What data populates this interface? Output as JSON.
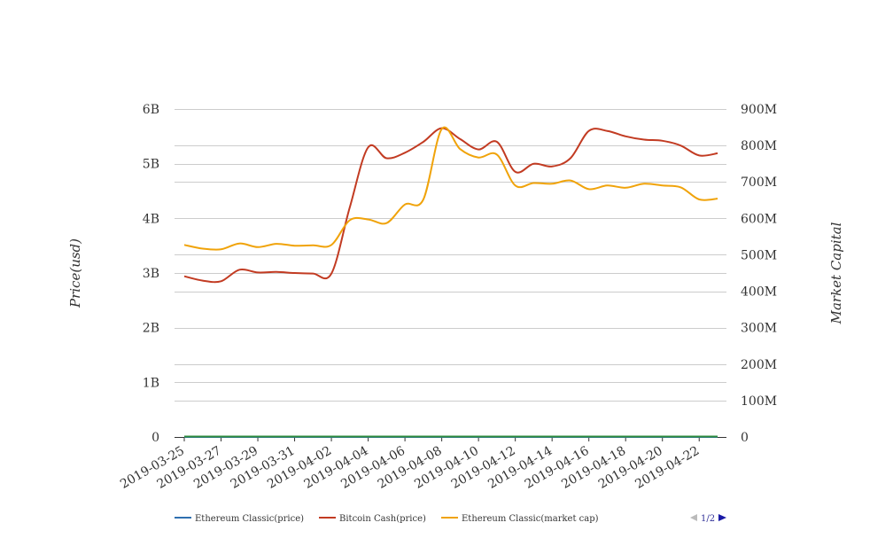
{
  "chart_data": {
    "type": "line",
    "title": "",
    "ylabel_left": "Price(usd)",
    "ylabel_right": "Market Capital",
    "x_ticks": [
      "2019-03-25",
      "2019-03-27",
      "2019-03-29",
      "2019-03-31",
      "2019-04-02",
      "2019-04-04",
      "2019-04-06",
      "2019-04-08",
      "2019-04-10",
      "2019-04-12",
      "2019-04-14",
      "2019-04-16",
      "2019-04-18",
      "2019-04-20",
      "2019-04-22"
    ],
    "y_left": {
      "min": 0,
      "max": 6000000000,
      "ticks": [
        {
          "value": 0,
          "label": "0"
        },
        {
          "value": 1000000000,
          "label": "1B"
        },
        {
          "value": 2000000000,
          "label": "2B"
        },
        {
          "value": 3000000000,
          "label": "3B"
        },
        {
          "value": 4000000000,
          "label": "4B"
        },
        {
          "value": 5000000000,
          "label": "5B"
        },
        {
          "value": 6000000000,
          "label": "6B"
        }
      ]
    },
    "y_right": {
      "min": 0,
      "max": 900000000,
      "ticks": [
        {
          "value": 0,
          "label": "0"
        },
        {
          "value": 100000000,
          "label": "100M"
        },
        {
          "value": 200000000,
          "label": "200M"
        },
        {
          "value": 300000000,
          "label": "300M"
        },
        {
          "value": 400000000,
          "label": "400M"
        },
        {
          "value": 500000000,
          "label": "500M"
        },
        {
          "value": 600000000,
          "label": "600M"
        },
        {
          "value": 700000000,
          "label": "700M"
        },
        {
          "value": 800000000,
          "label": "800M"
        },
        {
          "value": 900000000,
          "label": "900M"
        }
      ]
    },
    "grid": true,
    "legend_position": "bottom",
    "series": [
      {
        "name": "Ethereum Classic(price)",
        "axis": "left",
        "color": "#2f6fb0",
        "x": [
          "2019-03-25",
          "2019-04-23"
        ],
        "values": [
          4.8,
          4.3
        ]
      },
      {
        "name": "Bitcoin Cash(price)",
        "axis": "left",
        "color": "#c23b22",
        "x": [
          "2019-03-25",
          "2019-03-26",
          "2019-03-27",
          "2019-03-28",
          "2019-03-29",
          "2019-03-30",
          "2019-03-31",
          "2019-04-01",
          "2019-04-02",
          "2019-04-03",
          "2019-04-04",
          "2019-04-05",
          "2019-04-06",
          "2019-04-07",
          "2019-04-08",
          "2019-04-09",
          "2019-04-10",
          "2019-04-11",
          "2019-04-12",
          "2019-04-13",
          "2019-04-14",
          "2019-04-15",
          "2019-04-16",
          "2019-04-17",
          "2019-04-18",
          "2019-04-19",
          "2019-04-20",
          "2019-04-21",
          "2019-04-22",
          "2019-04-23"
        ],
        "values": [
          2940000000,
          2860000000,
          2850000000,
          3060000000,
          3010000000,
          3020000000,
          3000000000,
          2990000000,
          2990000000,
          4200000000,
          5300000000,
          5100000000,
          5200000000,
          5400000000,
          5650000000,
          5450000000,
          5260000000,
          5400000000,
          4850000000,
          5000000000,
          4950000000,
          5100000000,
          5600000000,
          5600000000,
          5500000000,
          5440000000,
          5420000000,
          5330000000,
          5150000000,
          5190000000
        ]
      },
      {
        "name": "Ethereum Classic(market cap)",
        "axis": "right",
        "color": "#f0a30a",
        "x": [
          "2019-03-25",
          "2019-03-26",
          "2019-03-27",
          "2019-03-28",
          "2019-03-29",
          "2019-03-30",
          "2019-03-31",
          "2019-04-01",
          "2019-04-02",
          "2019-04-03",
          "2019-04-04",
          "2019-04-05",
          "2019-04-06",
          "2019-04-07",
          "2019-04-08",
          "2019-04-09",
          "2019-04-10",
          "2019-04-11",
          "2019-04-12",
          "2019-04-13",
          "2019-04-14",
          "2019-04-15",
          "2019-04-16",
          "2019-04-17",
          "2019-04-18",
          "2019-04-19",
          "2019-04-20",
          "2019-04-21",
          "2019-04-22",
          "2019-04-23"
        ],
        "values": [
          527000000,
          517000000,
          515000000,
          531000000,
          521000000,
          530000000,
          525000000,
          526000000,
          527000000,
          595000000,
          597000000,
          587000000,
          638000000,
          652000000,
          845000000,
          790000000,
          767000000,
          775000000,
          690000000,
          697000000,
          695000000,
          704000000,
          680000000,
          690000000,
          684000000,
          695000000,
          690000000,
          685000000,
          652000000,
          654000000
        ]
      }
    ]
  },
  "legend": {
    "items": [
      {
        "label": "Ethereum Classic(price)",
        "color": "#2f6fb0"
      },
      {
        "label": "Bitcoin Cash(price)",
        "color": "#c23b22"
      },
      {
        "label": "Ethereum Classic(market cap)",
        "color": "#f0a30a"
      }
    ],
    "pager": "1/2"
  },
  "colors": {
    "grid": "#cccccc",
    "axis": "#333333",
    "zero_line": "#2e8b3d",
    "pager_active": "#1a1aa6",
    "pager_inactive": "#bbbbbb"
  }
}
